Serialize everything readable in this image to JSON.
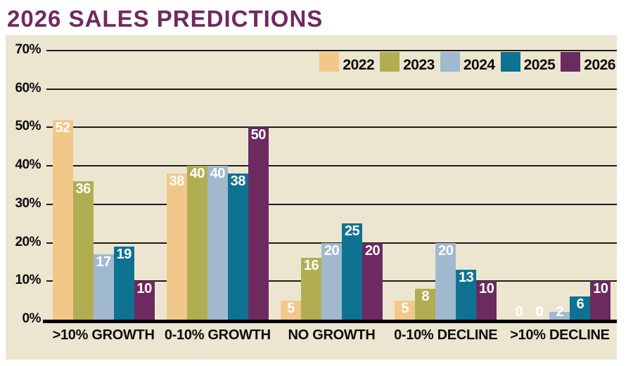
{
  "title": "2026 SALES PREDICTIONS",
  "colors": {
    "title": "#71295F",
    "page_bg": "#FFFFFF",
    "panel_bg": "#ECE6D0",
    "gridline": "#1B1B1B",
    "axis": "#000000",
    "value_label": "#FFFFFF",
    "tick_label": "#0D0D0D"
  },
  "chart_data": {
    "type": "bar",
    "title": "2026 SALES PREDICTIONS",
    "categories": [
      ">10% GROWTH",
      "0-10% GROWTH",
      "NO GROWTH",
      "0-10% DECLINE",
      ">10% DECLINE"
    ],
    "series": [
      {
        "name": "2022",
        "color": "#F2C88A",
        "values": [
          52,
          38,
          5,
          5,
          0
        ]
      },
      {
        "name": "2023",
        "color": "#B1AE52",
        "values": [
          36,
          40,
          16,
          8,
          0
        ]
      },
      {
        "name": "2024",
        "color": "#A1B9CF",
        "values": [
          17,
          40,
          20,
          20,
          2
        ]
      },
      {
        "name": "2025",
        "color": "#0E7392",
        "values": [
          19,
          38,
          25,
          13,
          6
        ]
      },
      {
        "name": "2026",
        "color": "#6C2A60",
        "values": [
          10,
          50,
          20,
          10,
          10
        ]
      }
    ],
    "xlabel": "",
    "ylabel": "",
    "ylim": [
      0,
      70
    ],
    "yticks": [
      {
        "value": 70,
        "label": "70%"
      },
      {
        "value": 60,
        "label": "60%"
      },
      {
        "value": 50,
        "label": "50%"
      },
      {
        "value": 40,
        "label": "40%"
      },
      {
        "value": 30,
        "label": "30%"
      },
      {
        "value": 20,
        "label": "20%"
      },
      {
        "value": 10,
        "label": "10%"
      },
      {
        "value": 0,
        "label": "0%"
      }
    ],
    "grid": "horizontal",
    "legend": {
      "position": "top-right",
      "entries": [
        "2022",
        "2023",
        "2024",
        "2025",
        "2026"
      ]
    },
    "value_labels": true
  }
}
